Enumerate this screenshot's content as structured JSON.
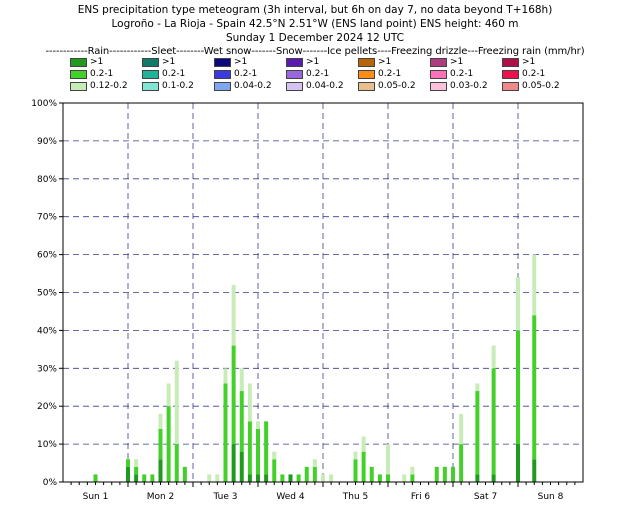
{
  "titles": {
    "line1": "ENS precipitation type meteogram (3h interval, but 6h on day 7, no data beyond T+168h)",
    "line2": "Logroño - La Rioja - Spain 42.5°N 2.51°W (ENS land point) ENS height: 460 m",
    "line3": "Sunday  1 December 2024 12 UTC"
  },
  "legend": {
    "header": "------------Rain------------Sleet--------Wet snow-------Snow-------Ice pellets----Freezing drizzle---Freezing rain (mm/hr)",
    "columns": [
      {
        "name": "Rain",
        "items": [
          {
            "label": ">1",
            "color": "#1f9a1f"
          },
          {
            "label": "0.2-1",
            "color": "#44d02a"
          },
          {
            "label": "0.12-0.2",
            "color": "#c8ecb8"
          }
        ]
      },
      {
        "name": "Sleet",
        "items": [
          {
            "label": ">1",
            "color": "#117a6a"
          },
          {
            "label": "0.2-1",
            "color": "#1fb39a"
          },
          {
            "label": "0.1-0.2",
            "color": "#80e5d4"
          }
        ]
      },
      {
        "name": "Wet snow",
        "items": [
          {
            "label": ">1",
            "color": "#0a0a7a"
          },
          {
            "label": "0.2-1",
            "color": "#3a3ae0"
          },
          {
            "label": "0.04-0.2",
            "color": "#7fa6f0"
          }
        ]
      },
      {
        "name": "Snow",
        "items": [
          {
            "label": ">1",
            "color": "#5a1ab0"
          },
          {
            "label": "0.2-1",
            "color": "#9a66e0"
          },
          {
            "label": "0.04-0.2",
            "color": "#d3c2f2"
          }
        ]
      },
      {
        "name": "Ice pellets",
        "items": [
          {
            "label": ">1",
            "color": "#b8650a"
          },
          {
            "label": "0.2-1",
            "color": "#ff8c14"
          },
          {
            "label": "0.05-0.2",
            "color": "#e8c08e"
          }
        ]
      },
      {
        "name": "Freezing drizzle",
        "items": [
          {
            "label": ">1",
            "color": "#b03c80"
          },
          {
            "label": "0.2-1",
            "color": "#ff70b8"
          },
          {
            "label": "0.03-0.2",
            "color": "#ffc0dc"
          }
        ]
      },
      {
        "name": "Freezing rain",
        "items": [
          {
            "label": ">1",
            "color": "#b0104a"
          },
          {
            "label": "0.2-1",
            "color": "#f01050"
          },
          {
            "label": "0.05-0.2",
            "color": "#f08a8a"
          }
        ]
      }
    ]
  },
  "chart_data": {
    "type": "bar",
    "title": "",
    "xlabel": "",
    "ylabel": "",
    "ylim": [
      0,
      100
    ],
    "y_ticks": [
      "0%",
      "10%",
      "20%",
      "30%",
      "40%",
      "50%",
      "60%",
      "70%",
      "80%",
      "90%",
      "100%"
    ],
    "x_days": [
      {
        "label": "Sun 1",
        "color": "#d00000"
      },
      {
        "label": "Mon 2",
        "color": "#000000"
      },
      {
        "label": "Tue 3",
        "color": "#000000"
      },
      {
        "label": "Wed 4",
        "color": "#000000"
      },
      {
        "label": "Thu 5",
        "color": "#000000"
      },
      {
        "label": "Fri 6",
        "color": "#000000"
      },
      {
        "label": "Sat 7",
        "color": "#000000"
      },
      {
        "label": "Sun 8",
        "color": "#d00000"
      }
    ],
    "x_range_hours": [
      -12,
      180
    ],
    "grid": true,
    "stack_order": [
      "Rain >1",
      "Rain 0.2-1",
      "Rain 0.12-0.2"
    ],
    "series": [
      {
        "name": "Rain >1",
        "color": "#1f9a1f"
      },
      {
        "name": "Rain 0.2-1",
        "color": "#44d02a"
      },
      {
        "name": "Rain 0.12-0.2",
        "color": "#c8ecb8"
      }
    ],
    "bars": [
      {
        "t": 0,
        "v": [
          0,
          2,
          0
        ]
      },
      {
        "t": 12,
        "v": [
          4,
          2,
          0
        ]
      },
      {
        "t": 15,
        "v": [
          2,
          2,
          2
        ]
      },
      {
        "t": 18,
        "v": [
          0,
          2,
          0
        ]
      },
      {
        "t": 21,
        "v": [
          0,
          2,
          0
        ]
      },
      {
        "t": 24,
        "v": [
          6,
          8,
          4
        ]
      },
      {
        "t": 27,
        "v": [
          0,
          20,
          6
        ]
      },
      {
        "t": 30,
        "v": [
          0,
          10,
          22
        ]
      },
      {
        "t": 33,
        "v": [
          0,
          4,
          0
        ]
      },
      {
        "t": 42,
        "v": [
          0,
          0,
          2
        ]
      },
      {
        "t": 45,
        "v": [
          0,
          0,
          2
        ]
      },
      {
        "t": 48,
        "v": [
          0,
          26,
          4
        ]
      },
      {
        "t": 51,
        "v": [
          10,
          26,
          16
        ]
      },
      {
        "t": 54,
        "v": [
          8,
          16,
          6
        ]
      },
      {
        "t": 57,
        "v": [
          2,
          14,
          10
        ]
      },
      {
        "t": 60,
        "v": [
          2,
          12,
          2
        ]
      },
      {
        "t": 63,
        "v": [
          2,
          14,
          0
        ]
      },
      {
        "t": 66,
        "v": [
          0,
          6,
          2
        ]
      },
      {
        "t": 69,
        "v": [
          0,
          2,
          0
        ]
      },
      {
        "t": 72,
        "v": [
          2,
          0,
          0
        ]
      },
      {
        "t": 75,
        "v": [
          0,
          2,
          0
        ]
      },
      {
        "t": 78,
        "v": [
          0,
          4,
          0
        ]
      },
      {
        "t": 81,
        "v": [
          0,
          4,
          2
        ]
      },
      {
        "t": 84,
        "v": [
          0,
          0,
          2
        ]
      },
      {
        "t": 87,
        "v": [
          0,
          0,
          2
        ]
      },
      {
        "t": 96,
        "v": [
          0,
          6,
          2
        ]
      },
      {
        "t": 99,
        "v": [
          0,
          8,
          4
        ]
      },
      {
        "t": 102,
        "v": [
          0,
          4,
          0
        ]
      },
      {
        "t": 105,
        "v": [
          0,
          2,
          0
        ]
      },
      {
        "t": 108,
        "v": [
          0,
          2,
          8
        ]
      },
      {
        "t": 114,
        "v": [
          0,
          0,
          2
        ]
      },
      {
        "t": 117,
        "v": [
          0,
          2,
          2
        ]
      },
      {
        "t": 126,
        "v": [
          0,
          4,
          0
        ]
      },
      {
        "t": 129,
        "v": [
          0,
          4,
          0
        ]
      },
      {
        "t": 132,
        "v": [
          0,
          4,
          0
        ]
      },
      {
        "t": 135,
        "v": [
          0,
          10,
          8
        ]
      },
      {
        "t": 141,
        "v": [
          2,
          22,
          2
        ]
      },
      {
        "t": 147,
        "v": [
          2,
          28,
          6
        ]
      },
      {
        "t": 156,
        "v": [
          10,
          30,
          14
        ]
      },
      {
        "t": 162,
        "v": [
          6,
          38,
          16
        ]
      }
    ]
  }
}
